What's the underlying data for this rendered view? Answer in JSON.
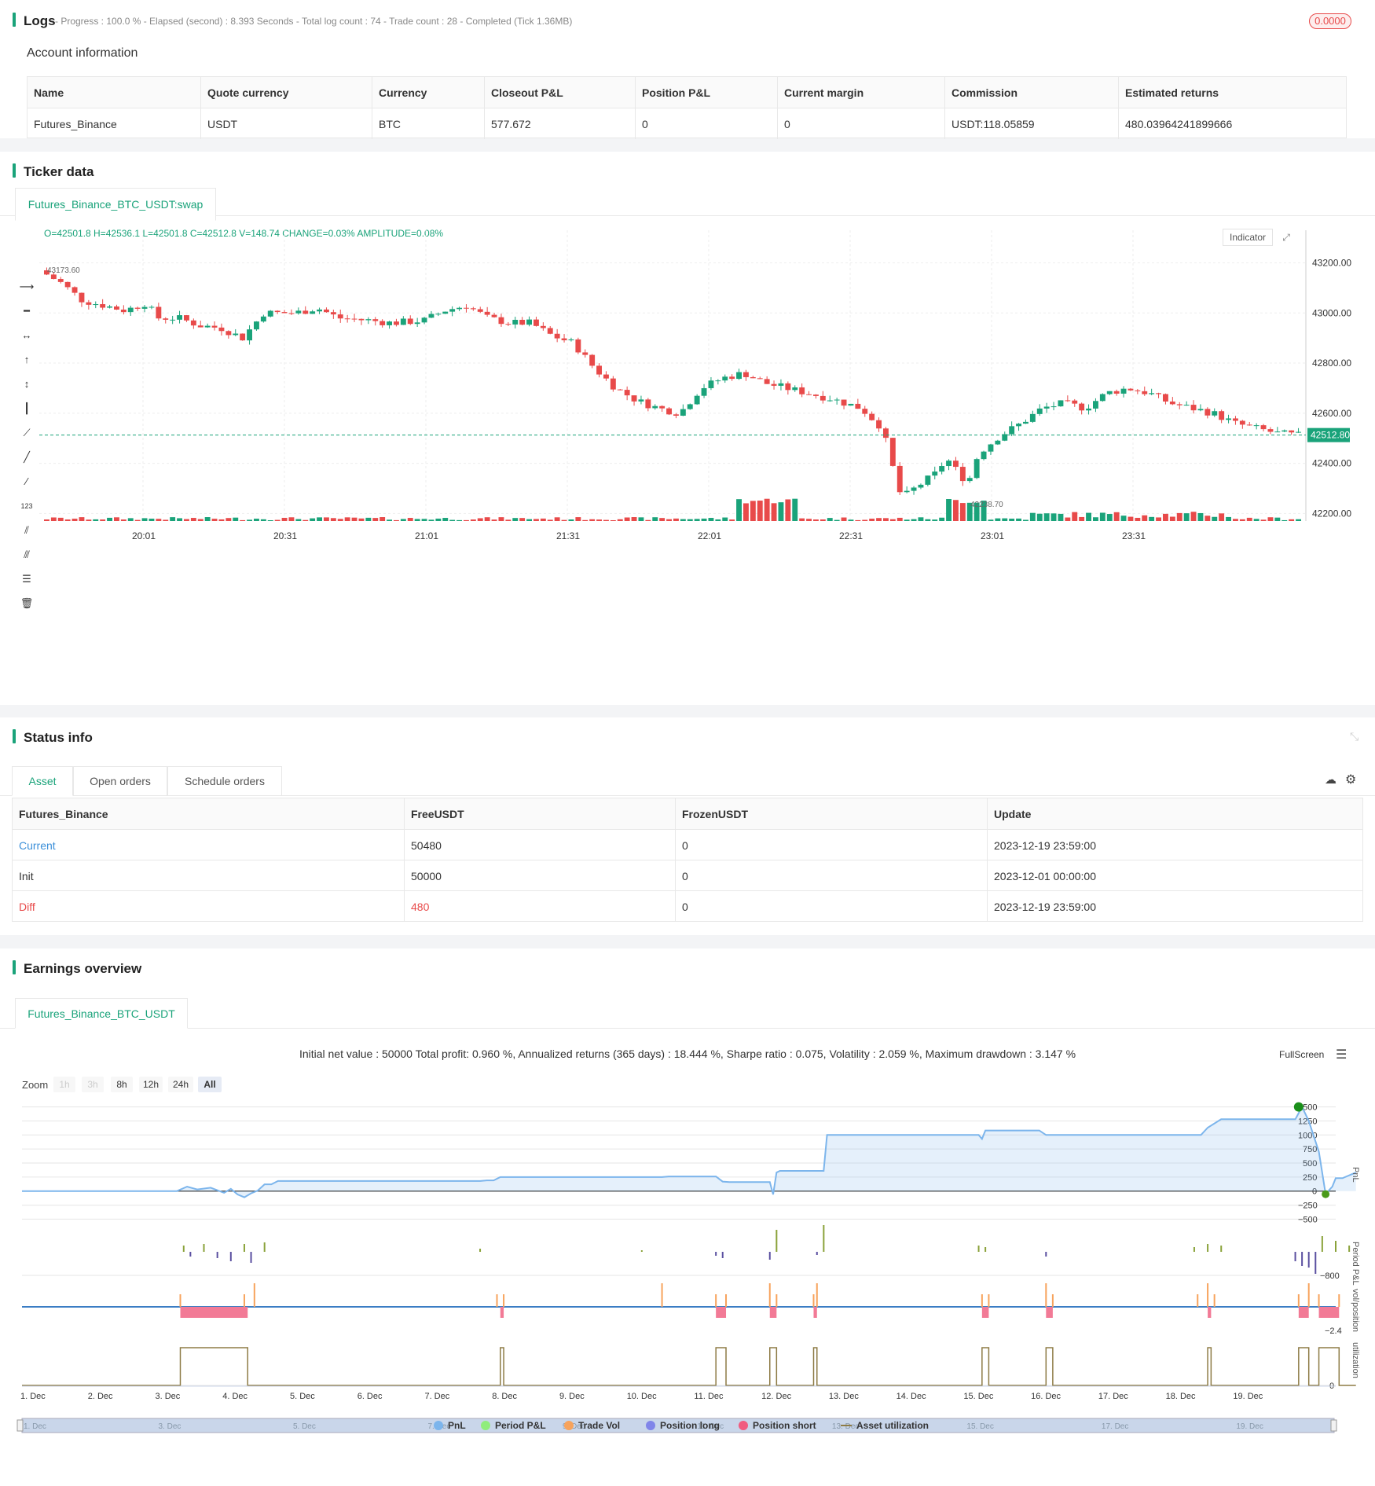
{
  "logs": {
    "title": "Logs",
    "progress_text": "- Progress : 100.0 % - Elapsed (second) : 8.393  Seconds - Total log count : 74 - Trade count : 28 - Completed (Tick 1.36MB)",
    "badge": "0.0000"
  },
  "account": {
    "title": "Account information",
    "headers": [
      "Name",
      "Quote currency",
      "Currency",
      "Closeout P&L",
      "Position P&L",
      "Current margin",
      "Commission",
      "Estimated returns"
    ],
    "row": [
      "Futures_Binance",
      "USDT",
      "BTC",
      "577.672",
      "0",
      "0",
      "USDT:118.05859",
      "480.03964241899666"
    ]
  },
  "ticker": {
    "title": "Ticker data",
    "tab": "Futures_Binance_BTC_USDT:swap",
    "ohlc_label": "O=42501.8 H=42536.1 L=42501.8 C=42512.8 V=148.74 CHANGE=",
    "change": "0.03%",
    "amp_label": " AMPLITUDE=",
    "amplitude": "0.08%",
    "indicator_button": "Indicator",
    "high_marker": "43173.60",
    "low_marker": "42238.70",
    "current_price": "42512.80",
    "y_ticks": [
      "43200.00",
      "43000.00",
      "42800.00",
      "42600.00",
      "42400.00",
      "42200.00"
    ],
    "x_ticks": [
      "20:01",
      "20:31",
      "21:01",
      "21:31",
      "22:01",
      "22:31",
      "23:01",
      "23:31"
    ]
  },
  "status": {
    "title": "Status info",
    "tabs": [
      "Asset",
      "Open orders",
      "Schedule orders"
    ],
    "headers": [
      "Futures_Binance",
      "FreeUSDT",
      "FrozenUSDT",
      "Update"
    ],
    "rows": [
      {
        "label": "Current",
        "free": "50480",
        "frozen": "0",
        "update": "2023-12-19 23:59:00"
      },
      {
        "label": "Init",
        "free": "50000",
        "frozen": "0",
        "update": "2023-12-01 00:00:00"
      },
      {
        "label": "Diff",
        "free": "480",
        "frozen": "0",
        "update": "2023-12-19 23:59:00"
      }
    ]
  },
  "earnings": {
    "title": "Earnings overview",
    "tab": "Futures_Binance_BTC_USDT",
    "summary": "Initial net value : 50000 Total profit: 0.960 %, Annualized returns (365 days) : 18.444 %, Sharpe ratio : 0.075, Volatility : 2.059 %, Maximum drawdown : 3.147 %",
    "fullscreen": "FullScreen",
    "zoom_label": "Zoom",
    "zoom_buttons": [
      "1h",
      "3h",
      "8h",
      "12h",
      "24h",
      "All"
    ],
    "pnl_ticks": [
      "1500",
      "1250",
      "1000",
      "750",
      "500",
      "250",
      "0",
      "−250",
      "−500"
    ],
    "axis_labels": [
      "PnL",
      "Period P&L",
      "vol/position",
      "utilization"
    ],
    "period_tick": "−800",
    "vol_tick": "−2.4",
    "util_tick": "0",
    "x_ticks": [
      "1. Dec",
      "2. Dec",
      "3. Dec",
      "4. Dec",
      "5. Dec",
      "6. Dec",
      "7. Dec",
      "8. Dec",
      "9. Dec",
      "10. Dec",
      "11. Dec",
      "12. Dec",
      "13. Dec",
      "14. Dec",
      "15. Dec",
      "16. Dec",
      "17. Dec",
      "18. Dec",
      "19. Dec"
    ],
    "nav_ticks": [
      "1. Dec",
      "3. Dec",
      "5. Dec",
      "7. Dec",
      "9. Dec",
      "11. Dec",
      "13. Dec",
      "15. Dec",
      "17. Dec",
      "19. Dec"
    ],
    "legend": [
      {
        "name": "PnL",
        "color": "#7cb5ec"
      },
      {
        "name": "Period P&L",
        "color": "#90ed7d"
      },
      {
        "name": "Trade Vol",
        "color": "#f7a35c"
      },
      {
        "name": "Position long",
        "color": "#8085e9"
      },
      {
        "name": "Position short",
        "color": "#f15c80"
      },
      {
        "name": "Asset utilization",
        "color": "#8d7b45"
      }
    ]
  },
  "colors": {
    "accent": "#1aa37a",
    "up": "#1aa37a",
    "down": "#e84a4a",
    "pnl": "#7cb5ec"
  }
}
